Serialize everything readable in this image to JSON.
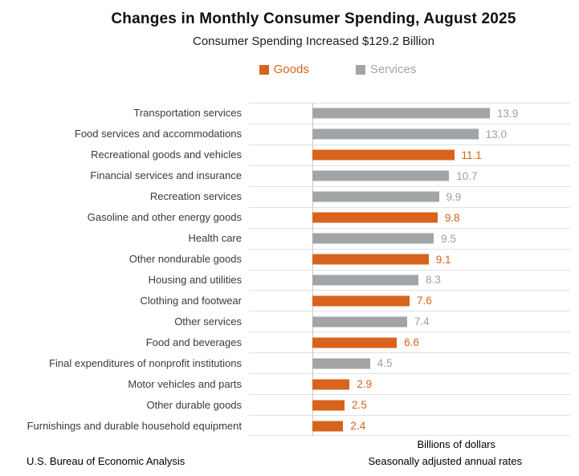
{
  "chart_data": {
    "type": "bar",
    "orientation": "horizontal",
    "title": "Changes in Monthly Consumer Spending, August 2025",
    "subtitle": "Consumer Spending Increased $129.2 Billion",
    "xlabel": "Billions of dollars",
    "note": "Seasonally adjusted annual rates",
    "source": "U.S. Bureau of Economic Analysis",
    "xlim": [
      -5,
      20.2
    ],
    "grid": true,
    "legend_position": "top",
    "legend": [
      {
        "label": "Goods",
        "color": "#D7631C"
      },
      {
        "label": "Services",
        "color": "#A2A5A7"
      }
    ],
    "colors": {
      "goods": "#D7631C",
      "services": "#A2A5A7",
      "goods_value_text": "#D7631C",
      "services_value_text": "#9BA0A6",
      "gridline": "#E1E1E1",
      "axis_line": "#C8C8C8"
    },
    "rows": [
      {
        "label": "Transportation services",
        "value": 13.9,
        "series": "Services"
      },
      {
        "label": "Food services and accommodations",
        "value": 13.0,
        "series": "Services"
      },
      {
        "label": "Recreational goods and vehicles",
        "value": 11.1,
        "series": "Goods"
      },
      {
        "label": "Financial services and insurance",
        "value": 10.7,
        "series": "Services"
      },
      {
        "label": "Recreation services",
        "value": 9.9,
        "series": "Services"
      },
      {
        "label": "Gasoline and other energy goods",
        "value": 9.8,
        "series": "Goods"
      },
      {
        "label": "Health care",
        "value": 9.5,
        "series": "Services"
      },
      {
        "label": "Other nondurable goods",
        "value": 9.1,
        "series": "Goods"
      },
      {
        "label": "Housing and utilities",
        "value": 8.3,
        "series": "Services"
      },
      {
        "label": "Clothing and footwear",
        "value": 7.6,
        "series": "Goods"
      },
      {
        "label": "Other services",
        "value": 7.4,
        "series": "Services"
      },
      {
        "label": "Food and beverages",
        "value": 6.6,
        "series": "Goods"
      },
      {
        "label": "Final expenditures of nonprofit institutions",
        "value": 4.5,
        "series": "Services"
      },
      {
        "label": "Motor vehicles and parts",
        "value": 2.9,
        "series": "Goods"
      },
      {
        "label": "Other durable goods",
        "value": 2.5,
        "series": "Goods"
      },
      {
        "label": "Furnishings and durable household equipment",
        "value": 2.4,
        "series": "Goods"
      }
    ]
  }
}
